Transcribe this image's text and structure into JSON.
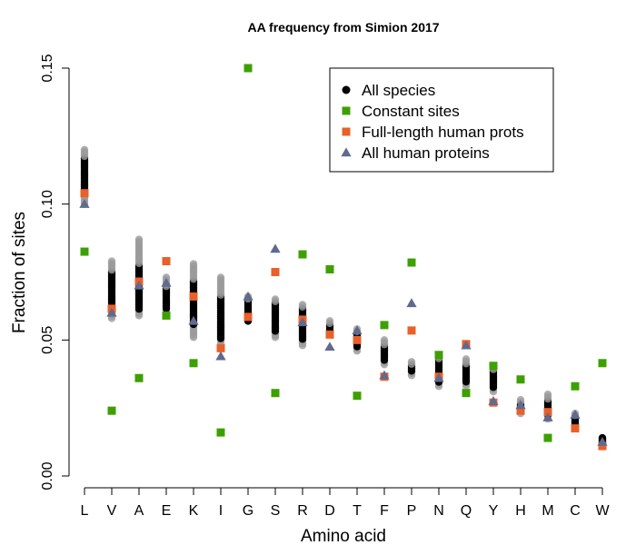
{
  "chart_data": {
    "type": "scatter",
    "title": "AA frequency from Simion 2017",
    "xlabel": "Amino acid",
    "ylabel": "Fraction of sites",
    "ylim": [
      0,
      0.15
    ],
    "yticks": [
      "0.00",
      "0.05",
      "0.10",
      "0.15"
    ],
    "categories": [
      "L",
      "V",
      "A",
      "E",
      "K",
      "I",
      "G",
      "S",
      "R",
      "D",
      "T",
      "F",
      "P",
      "N",
      "Q",
      "Y",
      "H",
      "M",
      "C",
      "W"
    ],
    "legend_position": "top-right",
    "colors": {
      "all_species_gray": "#9a9a9a",
      "all_species_black": "#000000",
      "constant": "#3ea000",
      "full_length": "#e8602a",
      "all_human": "#5f6a8e"
    },
    "all_species_ranges": [
      {
        "category": "L",
        "min": 0.1,
        "max": 0.12,
        "dense_min": 0.104,
        "dense_max": 0.117
      },
      {
        "category": "V",
        "min": 0.058,
        "max": 0.079,
        "dense_min": 0.063,
        "dense_max": 0.075
      },
      {
        "category": "A",
        "min": 0.059,
        "max": 0.087,
        "dense_min": 0.061,
        "dense_max": 0.078
      },
      {
        "category": "E",
        "min": 0.06,
        "max": 0.073,
        "dense_min": 0.061,
        "dense_max": 0.069
      },
      {
        "category": "K",
        "min": 0.051,
        "max": 0.078,
        "dense_min": 0.055,
        "dense_max": 0.072
      },
      {
        "category": "I",
        "min": 0.049,
        "max": 0.073,
        "dense_min": 0.05,
        "dense_max": 0.066
      },
      {
        "category": "G",
        "min": 0.057,
        "max": 0.066,
        "dense_min": 0.057,
        "dense_max": 0.065
      },
      {
        "category": "S",
        "min": 0.051,
        "max": 0.065,
        "dense_min": 0.053,
        "dense_max": 0.064
      },
      {
        "category": "R",
        "min": 0.048,
        "max": 0.063,
        "dense_min": 0.05,
        "dense_max": 0.062
      },
      {
        "category": "D",
        "min": 0.052,
        "max": 0.057,
        "dense_min": 0.052,
        "dense_max": 0.056
      },
      {
        "category": "T",
        "min": 0.046,
        "max": 0.054,
        "dense_min": 0.047,
        "dense_max": 0.053
      },
      {
        "category": "F",
        "min": 0.041,
        "max": 0.05,
        "dense_min": 0.042,
        "dense_max": 0.048
      },
      {
        "category": "P",
        "min": 0.037,
        "max": 0.042,
        "dense_min": 0.038,
        "dense_max": 0.041
      },
      {
        "category": "N",
        "min": 0.033,
        "max": 0.044,
        "dense_min": 0.034,
        "dense_max": 0.043
      },
      {
        "category": "Q",
        "min": 0.033,
        "max": 0.043,
        "dense_min": 0.034,
        "dense_max": 0.041
      },
      {
        "category": "Y",
        "min": 0.031,
        "max": 0.04,
        "dense_min": 0.032,
        "dense_max": 0.039
      },
      {
        "category": "H",
        "min": 0.023,
        "max": 0.028,
        "dense_min": 0.024,
        "dense_max": 0.027
      },
      {
        "category": "M",
        "min": 0.021,
        "max": 0.03,
        "dense_min": 0.022,
        "dense_max": 0.028
      },
      {
        "category": "C",
        "min": 0.019,
        "max": 0.023,
        "dense_min": 0.019,
        "dense_max": 0.022
      },
      {
        "category": "W",
        "min": 0.011,
        "max": 0.014,
        "dense_min": 0.011,
        "dense_max": 0.014
      }
    ],
    "series": [
      {
        "name": "Constant sites",
        "marker": "square",
        "color": "#3ea000",
        "values": [
          0.0825,
          0.024,
          0.036,
          0.059,
          0.0415,
          0.016,
          0.15,
          0.0305,
          0.0815,
          0.076,
          0.0295,
          0.0555,
          0.0785,
          0.0445,
          0.0305,
          0.0405,
          0.0355,
          0.014,
          0.033,
          0.0415
        ]
      },
      {
        "name": "Full-length human prots",
        "marker": "square",
        "color": "#e8602a",
        "values": [
          0.104,
          0.0615,
          0.0715,
          0.079,
          0.066,
          0.047,
          0.0585,
          0.075,
          0.0575,
          0.052,
          0.05,
          0.0365,
          0.0535,
          0.0365,
          0.0485,
          0.027,
          0.024,
          0.0235,
          0.0175,
          0.011
        ]
      },
      {
        "name": "All human proteins",
        "marker": "triangle",
        "color": "#5f6a8e",
        "values": [
          0.1,
          0.06,
          0.07,
          0.071,
          0.057,
          0.044,
          0.066,
          0.0835,
          0.0565,
          0.0475,
          0.0535,
          0.037,
          0.0635,
          0.036,
          0.048,
          0.0275,
          0.026,
          0.0215,
          0.0225,
          0.0125
        ]
      }
    ],
    "legend": [
      {
        "label": "All species",
        "marker": "circle",
        "color": "#000000"
      },
      {
        "label": "Constant sites",
        "marker": "square",
        "color": "#3ea000"
      },
      {
        "label": "Full-length human prots",
        "marker": "square",
        "color": "#e8602a"
      },
      {
        "label": "All human proteins",
        "marker": "triangle",
        "color": "#5f6a8e"
      }
    ]
  }
}
